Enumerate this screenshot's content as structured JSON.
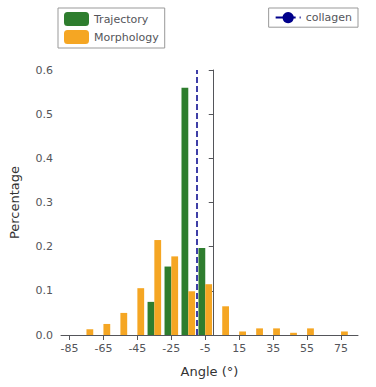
{
  "chart_data": {
    "type": "bar",
    "xlabel": "Angle (°)",
    "ylabel": "Percentage",
    "x": [
      -75,
      -65,
      -55,
      -45,
      -35,
      -25,
      -15,
      -5,
      5,
      15,
      25,
      35,
      45,
      55,
      65,
      75
    ],
    "series": [
      {
        "name": "Trajectory",
        "color": "#2E7D2E",
        "values": [
          0,
          0,
          0,
          0,
          0.075,
          0.155,
          0.56,
          0.197,
          0,
          0,
          0,
          0,
          0,
          0,
          0,
          0
        ]
      },
      {
        "name": "Morphology",
        "color": "#F5A623",
        "values": [
          0.013,
          0.025,
          0.05,
          0.106,
          0.215,
          0.178,
          0.099,
          0.115,
          0.065,
          0.008,
          0.015,
          0.015,
          0.005,
          0.015,
          0,
          0.008
        ]
      },
      {
        "name": "collagen",
        "type": "vline",
        "color": "#00008B",
        "line_style": "dashed",
        "x": [
          -10
        ],
        "legend": "upper right"
      }
    ],
    "xlim": [
      -90,
      85
    ],
    "xticks": [
      -85,
      -65,
      -45,
      -25,
      -5,
      15,
      35,
      55,
      75
    ],
    "ylim": [
      0,
      0.6
    ],
    "yticks": [
      {
        "value": 0,
        "label": "0.0"
      },
      0.1,
      0.2,
      0.3,
      0.4,
      0.5,
      0.6
    ],
    "legend": "upper left",
    "grid": false
  }
}
